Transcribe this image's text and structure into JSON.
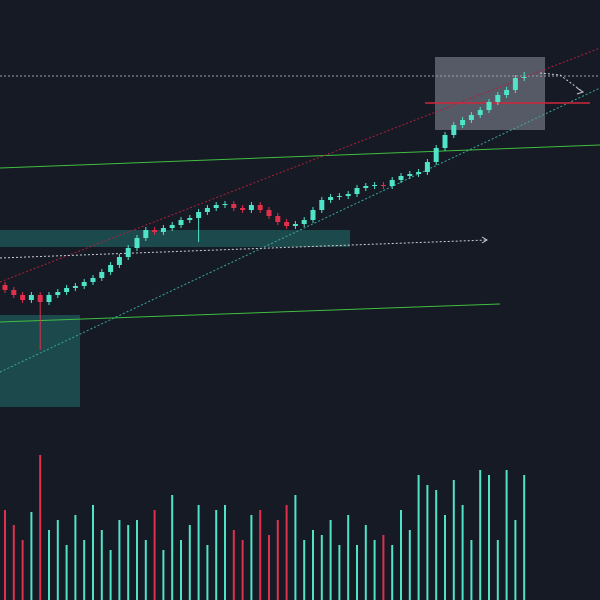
{
  "chart_data": {
    "type": "candlestick",
    "open": [
      315,
      310,
      305,
      300,
      305,
      298,
      305,
      308,
      312,
      314,
      318,
      322,
      328,
      335,
      343,
      352,
      362,
      370,
      368,
      372,
      375,
      380,
      382,
      388,
      392,
      395,
      396,
      392,
      390,
      395,
      390,
      384,
      378,
      374,
      376,
      380,
      390,
      400,
      403,
      404,
      406,
      412,
      414,
      415,
      414,
      420,
      424,
      426,
      428,
      438,
      452,
      465,
      475,
      480,
      485,
      490,
      498,
      505,
      510,
      522
    ],
    "high": [
      318,
      313,
      308,
      308,
      308,
      308,
      311,
      315,
      317,
      321,
      325,
      331,
      338,
      346,
      355,
      365,
      373,
      373,
      375,
      378,
      383,
      385,
      391,
      395,
      398,
      399,
      399,
      395,
      398,
      398,
      393,
      387,
      381,
      379,
      383,
      393,
      403,
      406,
      407,
      409,
      415,
      417,
      418,
      418,
      423,
      427,
      429,
      431,
      441,
      455,
      468,
      478,
      483,
      488,
      493,
      501,
      508,
      513,
      525,
      528
    ],
    "low": [
      307,
      302,
      297,
      297,
      250,
      295,
      302,
      305,
      309,
      311,
      315,
      319,
      325,
      332,
      340,
      349,
      359,
      365,
      365,
      369,
      372,
      377,
      358,
      385,
      389,
      392,
      389,
      387,
      387,
      387,
      381,
      375,
      371,
      371,
      373,
      377,
      387,
      397,
      400,
      401,
      403,
      409,
      411,
      411,
      411,
      417,
      421,
      423,
      425,
      435,
      449,
      462,
      472,
      477,
      482,
      487,
      495,
      502,
      507,
      519
    ],
    "close": [
      310,
      305,
      300,
      305,
      298,
      305,
      308,
      312,
      314,
      318,
      322,
      328,
      335,
      343,
      352,
      362,
      370,
      368,
      372,
      375,
      380,
      382,
      388,
      392,
      395,
      396,
      392,
      390,
      395,
      390,
      384,
      378,
      374,
      376,
      380,
      390,
      400,
      403,
      404,
      406,
      412,
      414,
      415,
      414,
      420,
      424,
      426,
      428,
      438,
      452,
      465,
      475,
      480,
      485,
      490,
      498,
      505,
      510,
      522,
      523
    ],
    "ylim": [
      0,
      600
    ],
    "up_color": "#4fe3c7",
    "down_color": "#e0304c",
    "volume": {
      "values": [
        90,
        75,
        60,
        88,
        145,
        70,
        80,
        55,
        85,
        60,
        95,
        70,
        50,
        80,
        75,
        80,
        60,
        90,
        50,
        105,
        60,
        75,
        95,
        55,
        90,
        95,
        70,
        60,
        85,
        90,
        65,
        80,
        95,
        105,
        60,
        70,
        65,
        80,
        55,
        85,
        55,
        75,
        60,
        65,
        55,
        90,
        70,
        125,
        115,
        110,
        85,
        120,
        95,
        60,
        130,
        125,
        60,
        130,
        80,
        125
      ],
      "ylim": [
        0,
        150
      ]
    }
  }
}
